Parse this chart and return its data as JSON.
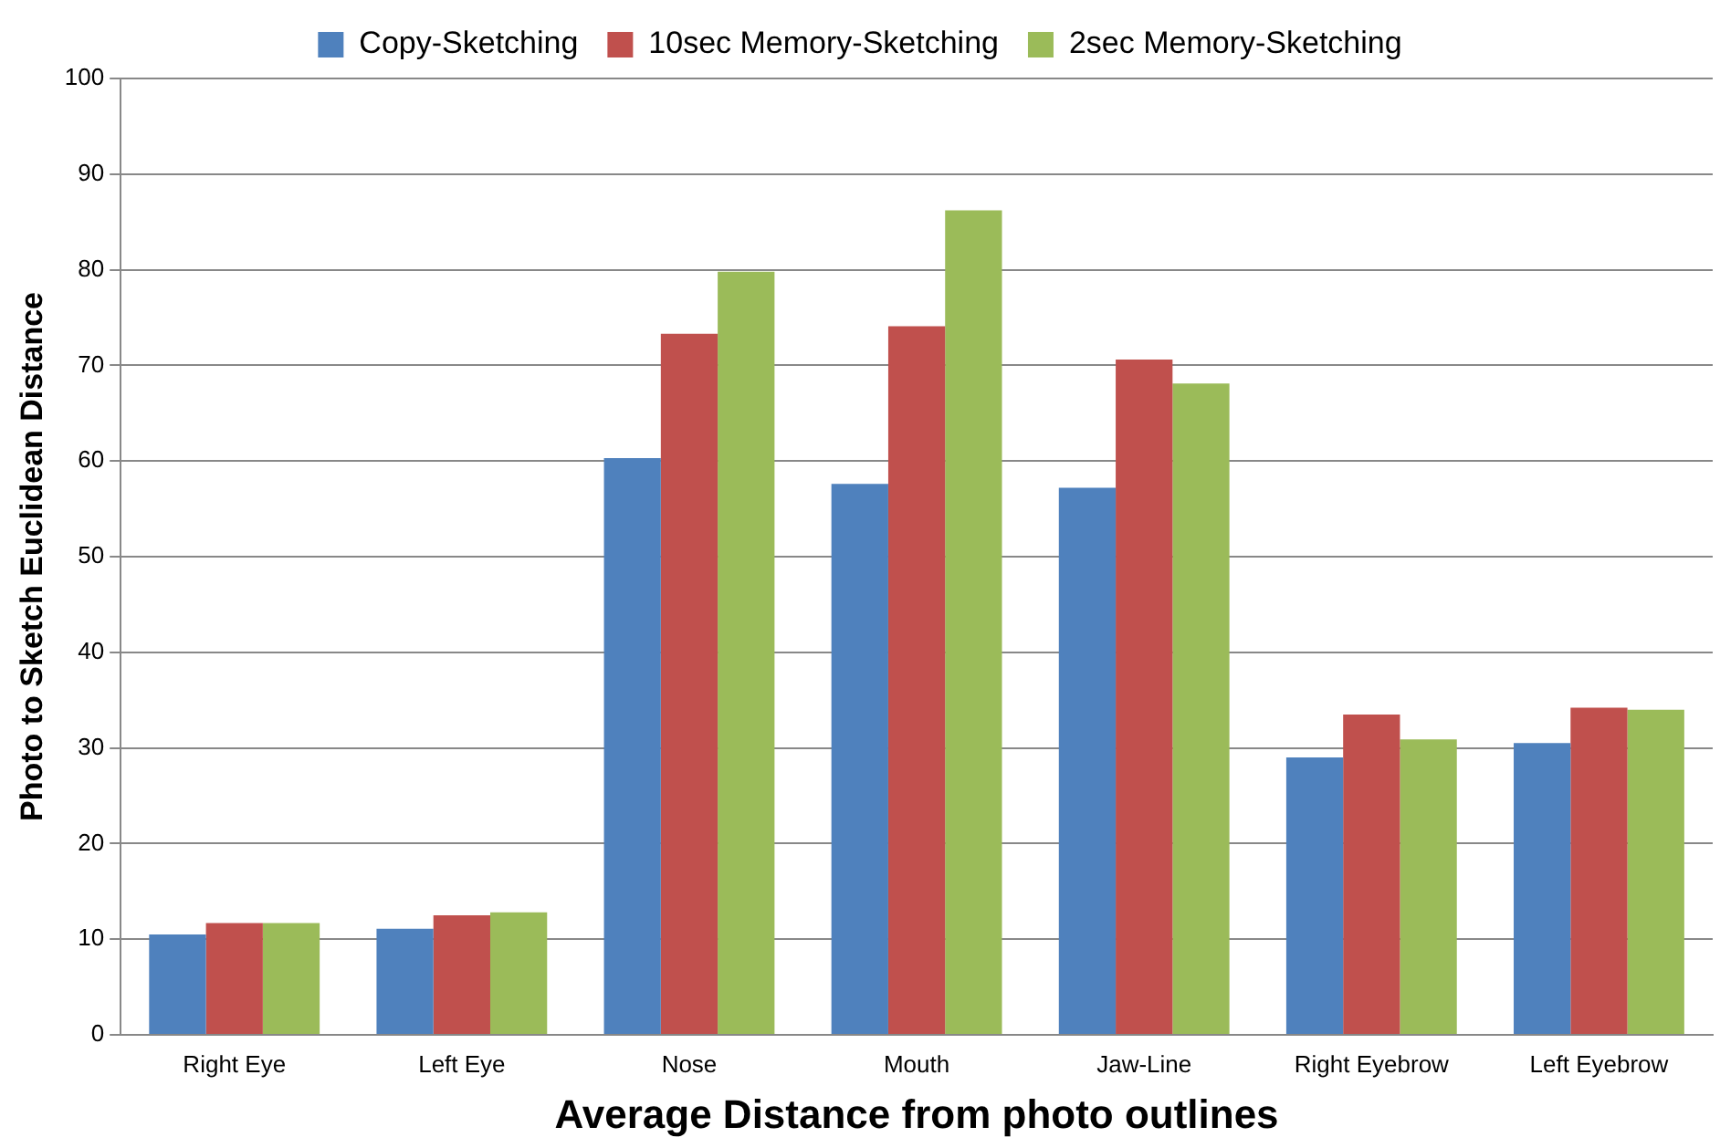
{
  "chart_data": {
    "type": "bar",
    "xlabel": "Average Distance from photo outlines",
    "ylabel": "Photo to Sketch Euclidean Distance",
    "categories": [
      "Right Eye",
      "Left Eye",
      "Nose",
      "Mouth",
      "Jaw-Line",
      "Right Eyebrow",
      "Left Eyebrow"
    ],
    "series": [
      {
        "name": "Copy-Sketching",
        "color": "#4f81bd",
        "values": [
          10.5,
          11.1,
          60.3,
          57.6,
          57.2,
          29.0,
          30.5
        ]
      },
      {
        "name": "10sec Memory-Sketching",
        "color": "#c0504d",
        "values": [
          11.7,
          12.5,
          73.3,
          74.1,
          70.6,
          33.5,
          34.2
        ]
      },
      {
        "name": "2sec Memory-Sketching",
        "color": "#9bbb59",
        "values": [
          11.7,
          12.8,
          79.8,
          86.2,
          68.1,
          30.9,
          34.0
        ]
      }
    ],
    "ylim": [
      0,
      100
    ],
    "yticks": [
      0,
      10,
      20,
      30,
      40,
      50,
      60,
      70,
      80,
      90,
      100
    ],
    "grid": "y",
    "legend": "top"
  }
}
